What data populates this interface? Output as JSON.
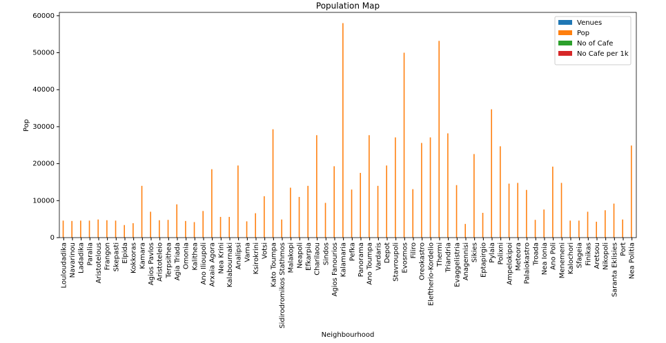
{
  "chart_data": {
    "type": "bar",
    "title": "Population Map",
    "x_label": "Neighbourhood",
    "y_label": "Pop",
    "categories": [
      "Louloudadika",
      "Navarinou",
      "Ladadika",
      "Paralia",
      "Aristotelous",
      "Frangon",
      "Skepasti",
      "Elpida",
      "Kokkoras",
      "Kamara",
      "Agios Pavlos",
      "Aristoteleio",
      "Terpsithea",
      "Agia Triada",
      "Omonia",
      "Kalithea",
      "Ano Ilioupoli",
      "Arxaia Agora",
      "Nea Krini",
      "Kalabournaki",
      "Analipsi",
      "Varna",
      "Ksirokrini",
      "Votsi",
      "Kato Toumpa",
      "Sidirodromikos Stathmos",
      "Malakopi",
      "Neapoli",
      "Efkarpia",
      "Charilaou",
      "Sindos",
      "Agios Fanourios",
      "Kalamaria",
      "Pefka",
      "Panorama",
      "Ano Toumpa",
      "Vardaris",
      "Depot",
      "Stavroupoli",
      "Evosmos",
      "Filiro",
      "Oreokastro",
      "Eleftherio-Kordelio",
      "Thermi",
      "Triandria",
      "Evaggelistria",
      "Anagennisi",
      "Sikies",
      "Eptapirgio",
      "Pylaia",
      "Polixni",
      "Ampelokipoi",
      "Meteora",
      "Palaiokastro",
      "Troada",
      "Nea Ionia",
      "Ano Poli",
      "Menemeni",
      "Kalochori",
      "Sfageia",
      "Finikas",
      "Aretsou",
      "Nikopoli",
      "Saranta Eklisies",
      "Port",
      "Nea Politia"
    ],
    "series": [
      {
        "name": "Venues",
        "color": "#1f77b4",
        "values": [
          0,
          0,
          0,
          0,
          0,
          0,
          0,
          0,
          0,
          0,
          0,
          0,
          0,
          0,
          0,
          0,
          0,
          0,
          0,
          0,
          0,
          0,
          0,
          0,
          0,
          0,
          0,
          0,
          0,
          0,
          0,
          0,
          0,
          0,
          0,
          0,
          0,
          0,
          0,
          0,
          0,
          0,
          0,
          0,
          0,
          0,
          0,
          0,
          0,
          0,
          0,
          0,
          0,
          0,
          0,
          0,
          0,
          0,
          0,
          0,
          0,
          0,
          0,
          0,
          0,
          0
        ]
      },
      {
        "name": "Pop",
        "color": "#ff7f0e",
        "values": [
          4600,
          4500,
          4600,
          4600,
          4900,
          4700,
          4600,
          3400,
          3900,
          14000,
          7000,
          4700,
          4800,
          9000,
          4500,
          4200,
          7200,
          18500,
          5600,
          5600,
          19500,
          4400,
          6600,
          11200,
          29300,
          4900,
          13500,
          11000,
          14000,
          27700,
          9400,
          19300,
          58000,
          13000,
          17500,
          27700,
          14000,
          19500,
          27100,
          50000,
          13100,
          25600,
          27100,
          53200,
          28200,
          14200,
          3700,
          22600,
          6700,
          34700,
          24700,
          14600,
          14800,
          12900,
          4800,
          7600,
          19200,
          14800,
          4600,
          4600,
          7000,
          4300,
          7400,
          9200,
          4900,
          24900
        ]
      },
      {
        "name": "No of Cafe",
        "color": "#2ca02c",
        "values": [
          0,
          0,
          0,
          0,
          0,
          0,
          0,
          0,
          0,
          0,
          0,
          0,
          0,
          0,
          0,
          0,
          0,
          0,
          0,
          0,
          0,
          0,
          0,
          0,
          0,
          0,
          0,
          0,
          0,
          0,
          0,
          0,
          0,
          0,
          0,
          0,
          0,
          0,
          0,
          0,
          0,
          0,
          0,
          0,
          0,
          0,
          0,
          0,
          0,
          0,
          0,
          0,
          0,
          0,
          0,
          0,
          0,
          0,
          0,
          0,
          0,
          0,
          0,
          0,
          0,
          0
        ]
      },
      {
        "name": "No Cafe per 1k",
        "color": "#d62728",
        "values": [
          0,
          0,
          0,
          0,
          0,
          0,
          0,
          0,
          0,
          0,
          0,
          0,
          0,
          0,
          0,
          0,
          0,
          0,
          0,
          0,
          0,
          0,
          0,
          0,
          0,
          0,
          0,
          0,
          0,
          0,
          0,
          0,
          0,
          0,
          0,
          0,
          0,
          0,
          0,
          0,
          0,
          0,
          0,
          0,
          0,
          0,
          0,
          0,
          0,
          0,
          0,
          0,
          0,
          0,
          0,
          0,
          0,
          0,
          0,
          0,
          0,
          0,
          0,
          0,
          0,
          0
        ]
      }
    ],
    "ylim": [
      0,
      60900
    ],
    "yticks": [
      0,
      10000,
      20000,
      30000,
      40000,
      50000,
      60000
    ],
    "grid": false,
    "legend": "upper right"
  }
}
